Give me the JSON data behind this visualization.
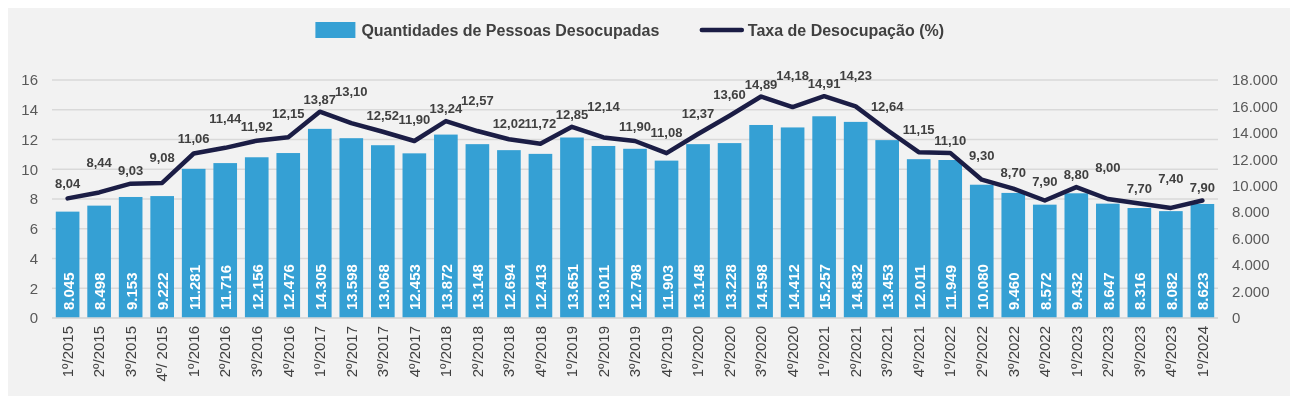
{
  "chart_data": {
    "type": "bar",
    "categories": [
      "1º/2015",
      "2º/2015",
      "3º/2015",
      "4º/ 2015",
      "1º/2016",
      "2º/2016",
      "3º/2016",
      "4º/2016",
      "1º/2017",
      "2º/2017",
      "3º/2017",
      "4º/2017",
      "1º/2018",
      "2º/2018",
      "3º/2018",
      "4º/2018",
      "1º/2019",
      "2º/2019",
      "3º/2019",
      "4º/2019",
      "1º/2020",
      "2º/2020",
      "3º/2020",
      "4º/2020",
      "1º/2021",
      "2º/2021",
      "3º/2021",
      "4º/2021",
      "1º/2022",
      "2º/2022",
      "3º/2022",
      "4º/2022",
      "1º/2023",
      "2º/2023",
      "3º/2023",
      "4º/2023",
      "1º/2024"
    ],
    "series": [
      {
        "name": "Quantidades de Pessoas Desocupadas",
        "axis": "y2",
        "color": "#35a0d4",
        "values": [
          8045,
          8498,
          9153,
          9222,
          11281,
          11716,
          12156,
          12476,
          14305,
          13598,
          13068,
          12453,
          13872,
          13148,
          12694,
          12413,
          13651,
          13011,
          12798,
          11903,
          13148,
          13228,
          14598,
          14412,
          15257,
          14832,
          13453,
          12011,
          11949,
          10080,
          9460,
          8572,
          9432,
          8647,
          8316,
          8082,
          8623
        ],
        "value_labels": [
          "8.045",
          "8.498",
          "9.153",
          "9.222",
          "11.281",
          "11.716",
          "12.156",
          "12.476",
          "14.305",
          "13.598",
          "13.068",
          "12.453",
          "13.872",
          "13.148",
          "12.694",
          "12.413",
          "13.651",
          "13.011",
          "12.798",
          "11.903",
          "13.148",
          "13.228",
          "14.598",
          "14.412",
          "15.257",
          "14.832",
          "13.453",
          "12.011",
          "11.949",
          "10.080",
          "9.460",
          "8.572",
          "9.432",
          "8.647",
          "8.316",
          "8.082",
          "8.623"
        ]
      },
      {
        "name": "Taxa de Desocupação (%)",
        "type": "line",
        "color": "#1b1d45",
        "values": [
          8.04,
          8.44,
          9.03,
          9.08,
          11.06,
          11.44,
          11.92,
          12.15,
          13.87,
          13.1,
          12.52,
          11.9,
          13.24,
          12.57,
          12.02,
          11.72,
          12.85,
          12.14,
          11.9,
          11.08,
          12.37,
          13.6,
          14.89,
          14.18,
          14.91,
          14.23,
          12.64,
          11.15,
          11.1,
          9.3,
          8.7,
          7.9,
          8.8,
          8.0,
          7.7,
          7.4,
          7.9
        ],
        "value_labels": [
          "8,04",
          "8,44",
          "9,03",
          "9,08",
          "11,06",
          "11,44",
          "11,92",
          "12,15",
          "13,87",
          "13,10",
          "12,52",
          "11,90",
          "13,24",
          "12,57",
          "12,02",
          "11,72",
          "12,85",
          "12,14",
          "11,90",
          "11,08",
          "12,37",
          "13,60",
          "14,89",
          "14,18",
          "14,91",
          "14,23",
          "12,64",
          "11,15",
          "11,10",
          "9,30",
          "8,70",
          "7,90",
          "8,80",
          "8,00",
          "7,70",
          "7,40",
          "7,90"
        ]
      }
    ],
    "ylim": [
      0,
      16
    ],
    "yticks": [
      0,
      2,
      4,
      6,
      8,
      10,
      12,
      14,
      16
    ],
    "y2lim": [
      0,
      18000
    ],
    "y2ticks": [
      {
        "value": 0,
        "label": "0"
      },
      {
        "value": 2000,
        "label": "2.000"
      },
      {
        "value": 4000,
        "label": "4.000"
      },
      {
        "value": 6000,
        "label": "6.000"
      },
      {
        "value": 8000,
        "label": "8.000"
      },
      {
        "value": 10000,
        "label": "10.000"
      },
      {
        "value": 12000,
        "label": "12.000"
      },
      {
        "value": 14000,
        "label": "14.000"
      },
      {
        "value": 16000,
        "label": "16.000"
      },
      {
        "value": 18000,
        "label": "18.000"
      }
    ],
    "grid": "y",
    "legend": "top",
    "marker": "none",
    "line_style": "solid"
  }
}
